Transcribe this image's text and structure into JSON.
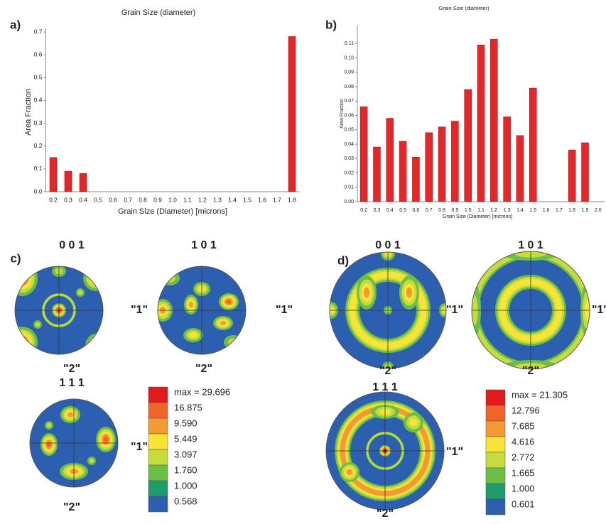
{
  "chart_data": [
    {
      "type": "bar",
      "title": "Grain Size (diameter)",
      "panel_label": "a)",
      "x_label": "Grain Size (Diameter) [microns]",
      "y_label": "Area Fraction",
      "categories": [
        "0.2",
        "0.3",
        "0.4",
        "0.5",
        "0.6",
        "0.7",
        "0.8",
        "0.9",
        "1.0",
        "1.1",
        "1.2",
        "1.3",
        "1.4",
        "1.5",
        "1.6",
        "1.7",
        "1.8"
      ],
      "values": [
        0.15,
        0.09,
        0.08,
        0,
        0,
        0,
        0,
        0,
        0,
        0,
        0,
        0,
        0,
        0,
        0,
        0,
        0.68
      ],
      "color": "#e8262a",
      "ylim": [
        0,
        0.7
      ],
      "yticks": [
        {
          "value": 0,
          "label": "0.0"
        },
        0.1,
        0.2,
        0.3,
        0.4,
        0.5,
        0.6,
        0.7
      ]
    },
    {
      "type": "bar",
      "title": "Grain Size (diameter)",
      "panel_label": "b)",
      "x_label": "Grain Size (Diameter) [microns]",
      "y_label": "Area Fraction",
      "categories": [
        "0.2",
        "0.3",
        "0.4",
        "0.5",
        "0.6",
        "0.7",
        "0.8",
        "0.9",
        "1.0",
        "1.1",
        "1.2",
        "1.3",
        "1.4",
        "1.5",
        "1.6",
        "1.7",
        "1.8",
        "1.9",
        "2.0"
      ],
      "values": [
        0.066,
        0.038,
        0.058,
        0.042,
        0.031,
        0.048,
        0.052,
        0.056,
        0.078,
        0.109,
        0.113,
        0.059,
        0.046,
        0.079,
        0,
        0,
        0.036,
        0.041,
        0
      ],
      "color": "#e8262a",
      "ylim": [
        0,
        0.12
      ],
      "yticks": [
        {
          "value": 0,
          "label": "0.00"
        },
        0.01,
        0.02,
        0.03,
        0.04,
        0.05,
        0.06,
        0.07,
        0.08,
        0.09,
        {
          "value": 0.1,
          "label": "0.10"
        },
        0.11
      ]
    }
  ],
  "pole_figures": [
    {
      "panel_label": "c)",
      "figures": [
        {
          "title": "0 0 1",
          "x_label": "\"1\"",
          "y_label": "\"2\""
        },
        {
          "title": "1 0 1",
          "x_label": "\"1\"",
          "y_label": "\"2\""
        },
        {
          "title": "1 1 1",
          "x_label": "\"1\"",
          "y_label": "\"2\""
        }
      ],
      "legend": [
        "max = 29.696",
        "16.875",
        "9.590",
        "5.449",
        "3.097",
        "1.760",
        "1.000",
        "0.568"
      ]
    },
    {
      "panel_label": "d)",
      "figures": [
        {
          "title": "0 0 1",
          "x_label": "\"1\"",
          "y_label": "\"2\""
        },
        {
          "title": "1 0 1",
          "x_label": "\"1'",
          "y_label": "\"2\""
        },
        {
          "title": "1 1 1",
          "x_label": "\"1\"",
          "y_label": "\"2\""
        }
      ],
      "legend": [
        "max = 21.305",
        "12.796",
        "7.685",
        "4.616",
        "2.772",
        "1.665",
        "1.000",
        "0.601"
      ]
    }
  ]
}
